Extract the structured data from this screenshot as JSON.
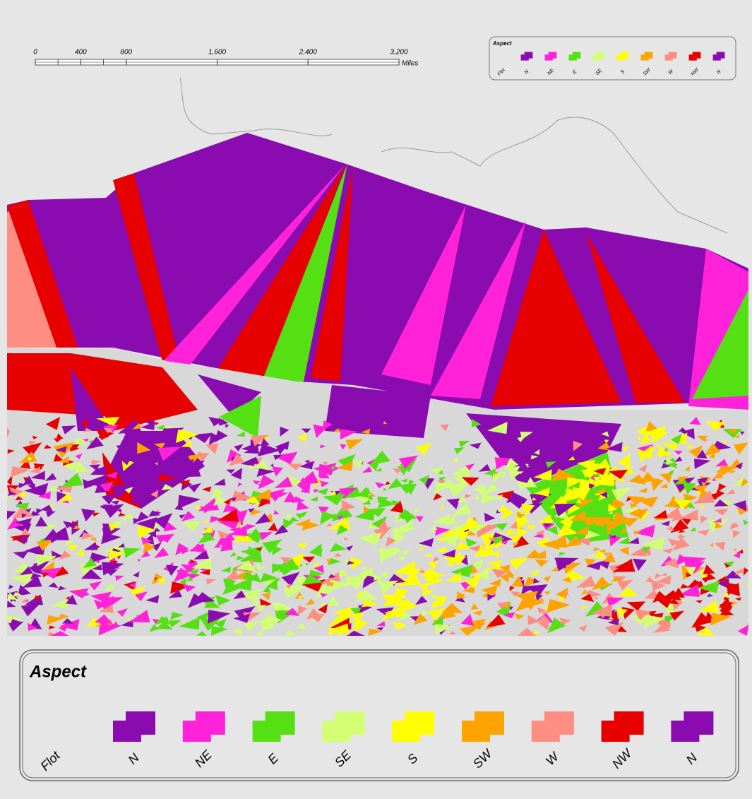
{
  "scale_bar": {
    "ticks": [
      0,
      400,
      800,
      {
        "value": 1600,
        "label": "1,600"
      },
      {
        "value": 2400,
        "label": "2,400"
      },
      {
        "value": 3200,
        "label": "3,200"
      }
    ],
    "unit": "Miles"
  },
  "legend": {
    "title": "Aspect",
    "flat_label": "Flot",
    "entries": [
      {
        "name": "N",
        "color": "#8a0bb0"
      },
      {
        "name": "NE",
        "color": "#ff22d9"
      },
      {
        "name": "E",
        "color": "#55e014"
      },
      {
        "name": "SE",
        "color": "#d2ff73"
      },
      {
        "name": "S",
        "color": "#ffff00"
      },
      {
        "name": "SW",
        "color": "#ffa300"
      },
      {
        "name": "W",
        "color": "#ff8e82"
      },
      {
        "name": "NW",
        "color": "#e60000"
      },
      {
        "name": "N",
        "color": "#8a0bb0"
      }
    ]
  }
}
